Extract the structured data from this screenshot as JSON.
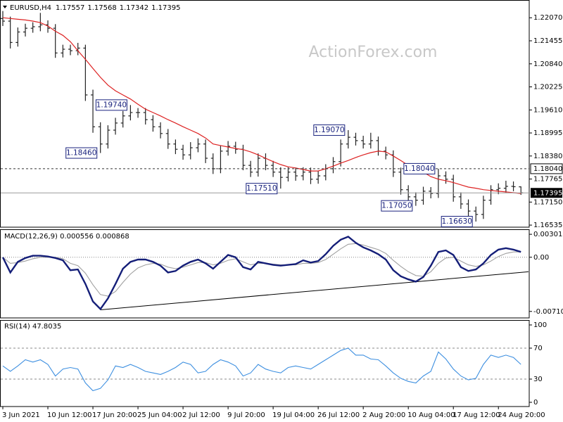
{
  "chart_data": [
    {
      "type": "ohlc",
      "title": "EURUSD,H4",
      "watermark": "ActionForex.com",
      "color": "#222222",
      "open": [
        1.2205,
        1.2198,
        1.2141,
        1.2169,
        1.2179,
        1.2183,
        1.2188,
        1.2179,
        1.2113,
        1.2123,
        1.2119,
        1.2126,
        1.2001,
        1.1916,
        1.187,
        1.1907,
        1.1926,
        1.1945,
        1.1954,
        1.1954,
        1.1935,
        1.1916,
        1.1898,
        1.187,
        1.1856,
        1.1841,
        1.186,
        1.187,
        1.1832,
        1.1804,
        1.1851,
        1.1864,
        1.1856,
        1.1813,
        1.1795,
        1.1832,
        1.1813,
        1.1795,
        1.1781,
        1.1795,
        1.1785,
        1.1795,
        1.1776,
        1.1785,
        1.1804,
        1.1823,
        1.187,
        1.1888,
        1.1879,
        1.187,
        1.1879,
        1.1851,
        1.1841,
        1.1795,
        1.1748,
        1.1729,
        1.172,
        1.1744,
        1.1738,
        1.1785,
        1.1776,
        1.1729,
        1.171,
        1.1691,
        1.1682,
        1.172,
        1.1748,
        1.1752,
        1.1757,
        1.17557
      ],
      "high": [
        1.2225,
        1.221,
        1.2181,
        1.2191,
        1.2195,
        1.222,
        1.22,
        1.219,
        1.2135,
        1.2135,
        1.214,
        1.2135,
        1.2015,
        1.1928,
        1.192,
        1.194,
        1.1958,
        1.1974,
        1.1966,
        1.1966,
        1.1947,
        1.1928,
        1.191,
        1.1882,
        1.1868,
        1.1875,
        1.1885,
        1.1882,
        1.1845,
        1.1865,
        1.1878,
        1.1876,
        1.1868,
        1.1825,
        1.1845,
        1.1845,
        1.1825,
        1.1808,
        1.1808,
        1.1807,
        1.1808,
        1.1807,
        1.1798,
        1.1816,
        1.1835,
        1.1882,
        1.1907,
        1.19,
        1.1892,
        1.19,
        1.189,
        1.1863,
        1.1853,
        1.1807,
        1.176,
        1.1741,
        1.1756,
        1.1755,
        1.1804,
        1.1797,
        1.1788,
        1.1741,
        1.1722,
        1.1703,
        1.1732,
        1.176,
        1.1765,
        1.1772,
        1.177,
        1.17568
      ],
      "low": [
        1.2185,
        1.2125,
        1.213,
        1.2157,
        1.2167,
        1.2171,
        1.2167,
        1.21,
        1.2101,
        1.2107,
        1.2107,
        1.1985,
        1.19,
        1.1846,
        1.1858,
        1.1895,
        1.1914,
        1.1933,
        1.194,
        1.1922,
        1.1903,
        1.1885,
        1.1857,
        1.1843,
        1.1828,
        1.1829,
        1.1848,
        1.1819,
        1.179,
        1.1792,
        1.1839,
        1.1844,
        1.18,
        1.1782,
        1.1783,
        1.18,
        1.1782,
        1.1751,
        1.177,
        1.1772,
        1.1773,
        1.1763,
        1.1764,
        1.1773,
        1.1792,
        1.181,
        1.1858,
        1.1866,
        1.1858,
        1.1858,
        1.1839,
        1.1829,
        1.1782,
        1.1735,
        1.1716,
        1.1705,
        1.1708,
        1.1725,
        1.1726,
        1.1764,
        1.1716,
        1.1697,
        1.1678,
        1.1663,
        1.167,
        1.1708,
        1.1736,
        1.174,
        1.1744,
        1.17342
      ],
      "close": [
        1.2198,
        1.2141,
        1.2169,
        1.2179,
        1.2183,
        1.2188,
        1.2179,
        1.2113,
        1.2123,
        1.2119,
        1.2126,
        1.2001,
        1.1916,
        1.187,
        1.1907,
        1.1926,
        1.1945,
        1.1954,
        1.1954,
        1.1935,
        1.1916,
        1.1898,
        1.187,
        1.1856,
        1.1841,
        1.186,
        1.187,
        1.1832,
        1.1804,
        1.1851,
        1.1864,
        1.1856,
        1.1813,
        1.1795,
        1.1832,
        1.1813,
        1.1795,
        1.1781,
        1.1795,
        1.1785,
        1.1795,
        1.1776,
        1.1785,
        1.1804,
        1.1823,
        1.187,
        1.1888,
        1.1879,
        1.187,
        1.1879,
        1.1851,
        1.1841,
        1.1795,
        1.1748,
        1.1729,
        1.172,
        1.1744,
        1.1738,
        1.1785,
        1.1776,
        1.1729,
        1.171,
        1.1691,
        1.1682,
        1.172,
        1.1748,
        1.1752,
        1.1757,
        1.1756,
        1.17395
      ],
      "moving_average": {
        "color": "#dd2222",
        "values": [
          1.2207,
          1.2205,
          1.2203,
          1.2201,
          1.2198,
          1.2194,
          1.2185,
          1.2171,
          1.216,
          1.2143,
          1.2119,
          1.2096,
          1.2072,
          1.2048,
          1.2027,
          1.2012,
          1.2001,
          1.199,
          1.1976,
          1.1963,
          1.1954,
          1.1945,
          1.1935,
          1.1926,
          1.1916,
          1.1907,
          1.1898,
          1.1886,
          1.187,
          1.1866,
          1.1862,
          1.1858,
          1.1855,
          1.1849,
          1.1841,
          1.1832,
          1.1823,
          1.1815,
          1.1809,
          1.1806,
          1.1802,
          1.1798,
          1.1798,
          1.1804,
          1.1811,
          1.1819,
          1.1826,
          1.1834,
          1.1841,
          1.1847,
          1.1851,
          1.1849,
          1.1838,
          1.1826,
          1.1813,
          1.1804,
          1.1795,
          1.1783,
          1.1776,
          1.1772,
          1.1767,
          1.1761,
          1.1755,
          1.1752,
          1.1748,
          1.1746,
          1.1744,
          1.1742,
          1.174,
          1.1738
        ]
      },
      "annotations": [
        {
          "value": 1.1974,
          "label": "1.19740"
        },
        {
          "value": 1.1846,
          "label": "1.18460"
        },
        {
          "value": 1.1907,
          "label": "1.19070"
        },
        {
          "value": 1.1751,
          "label": "1.17510"
        },
        {
          "value": 1.1804,
          "label": "1.18040"
        },
        {
          "value": 1.1705,
          "label": "1.17050"
        },
        {
          "value": 1.1663,
          "label": "1.16630"
        }
      ],
      "hline": {
        "value": 1.1804,
        "label": "1.18040"
      },
      "ylim": [
        1.1648,
        1.2245
      ],
      "yticks": [
        {
          "value": 1.2207,
          "label": "1.22070"
        },
        1.21455,
        {
          "value": 1.2084,
          "label": "1.20840"
        },
        1.20225,
        {
          "value": 1.1961,
          "label": "1.19610"
        },
        1.18995,
        {
          "value": 1.1838,
          "label": "1.18380"
        },
        1.17765,
        {
          "value": 1.1715,
          "label": "1.17150"
        },
        1.16535
      ],
      "grid": false
    },
    {
      "type": "line",
      "title": "MACD(12,26,9) 0.000556 0.000868",
      "series": [
        {
          "color": "#141e78",
          "values": [
            0.0,
            -0.002,
            -0.0006,
            -0.0001,
            0.0002,
            0.0002,
            0.0001,
            -0.0001,
            -0.0004,
            -0.0017,
            -0.0016,
            -0.0035,
            -0.0058,
            -0.0068,
            -0.0054,
            -0.0035,
            -0.0015,
            -0.0006,
            -0.0003,
            -0.0003,
            -0.0006,
            -0.0011,
            -0.002,
            -0.0018,
            -0.0011,
            -0.0006,
            -0.0003,
            -0.0008,
            -0.0015,
            -0.0006,
            0.0003,
            0.0,
            -0.0013,
            -0.0016,
            -0.0006,
            -0.0008,
            -0.001,
            -0.0011,
            -0.001,
            -0.0009,
            -0.0004,
            -0.0007,
            -0.0005,
            0.0004,
            0.0015,
            0.0023,
            0.0027,
            0.0019,
            0.0013,
            0.0009,
            0.0004,
            -0.0003,
            -0.0017,
            -0.0025,
            -0.0029,
            -0.0032,
            -0.0026,
            -0.0011,
            0.0007,
            0.0009,
            0.0003,
            -0.0013,
            -0.0018,
            -0.0016,
            -0.0008,
            0.0003,
            0.001,
            0.0012,
            0.001,
            0.0007
          ]
        },
        {
          "color": "#a0a0a0",
          "values": [
            0.0,
            -0.0008,
            -0.0007,
            -0.0005,
            -0.0002,
            0.0,
            0.0,
            0.0,
            -0.0002,
            -0.0008,
            -0.0011,
            -0.0021,
            -0.0036,
            -0.0049,
            -0.0051,
            -0.0045,
            -0.0033,
            -0.0022,
            -0.0014,
            -0.001,
            -0.0008,
            -0.0009,
            -0.0013,
            -0.0015,
            -0.0013,
            -0.001,
            -0.0007,
            -0.0007,
            -0.001,
            -0.0008,
            -0.0004,
            -0.0002,
            -0.0006,
            -0.001,
            -0.0008,
            -0.0008,
            -0.0009,
            -0.001,
            -0.001,
            -0.001,
            -0.0008,
            -0.0008,
            -0.0007,
            -0.0003,
            0.0004,
            0.0011,
            0.0017,
            0.0018,
            0.0016,
            0.0013,
            0.001,
            0.0005,
            -0.0004,
            -0.0012,
            -0.0019,
            -0.0024,
            -0.0025,
            -0.0019,
            -0.0008,
            -0.0001,
            0.0,
            -0.0005,
            -0.001,
            -0.0012,
            -0.001,
            -0.0005,
            0.0001,
            0.0005,
            0.0007,
            0.0007
          ]
        }
      ],
      "trendline": {
        "from": [
          13,
          -0.0069
        ],
        "to": [
          70,
          -0.0019
        ]
      },
      "zero_line": true,
      "ylim": [
        -0.0075,
        0.0033
      ],
      "yticks": [
        0.003012,
        {
          "value": 0,
          "label": "0.00"
        },
        -0.007109
      ],
      "grid": false
    },
    {
      "type": "line",
      "title": "RSI(14) 47.8035",
      "series": [
        {
          "color": "#3d8fe0",
          "values": [
            47,
            40,
            47,
            55,
            52,
            55,
            49,
            34,
            43,
            45,
            43,
            25,
            15,
            18,
            29,
            47,
            45,
            49,
            45,
            40,
            38,
            36,
            40,
            45,
            52,
            49,
            38,
            40,
            49,
            55,
            52,
            47,
            34,
            38,
            49,
            43,
            40,
            38,
            45,
            47,
            45,
            43,
            49,
            55,
            61,
            67,
            70,
            61,
            61,
            56,
            55,
            47,
            38,
            31,
            27,
            25,
            34,
            40,
            65,
            56,
            43,
            34,
            29,
            31,
            49,
            61,
            58,
            61,
            58,
            49
          ]
        }
      ],
      "ylim": [
        0,
        100
      ],
      "yticks": [
        100,
        70,
        30,
        0
      ],
      "grid": true,
      "categories": [
        "3 Jun 2021",
        null,
        null,
        null,
        null,
        null,
        "10 Jun 12:00",
        null,
        null,
        null,
        null,
        null,
        "17 Jun 20:00",
        null,
        null,
        null,
        null,
        null,
        "25 Jun 04:00",
        null,
        null,
        null,
        null,
        null,
        "2 Jul 12:00",
        null,
        null,
        null,
        null,
        null,
        "9 Jul 20:00",
        null,
        null,
        null,
        null,
        null,
        "19 Jul 04:00",
        null,
        null,
        null,
        null,
        null,
        "26 Jul 12:00",
        null,
        null,
        null,
        null,
        null,
        "2 Aug 20:00",
        null,
        null,
        null,
        null,
        null,
        "10 Aug 04:00",
        null,
        null,
        null,
        null,
        null,
        "17 Aug 12:00",
        null,
        null,
        null,
        null,
        null,
        "24 Aug 20:00",
        null,
        null,
        null
      ]
    }
  ]
}
